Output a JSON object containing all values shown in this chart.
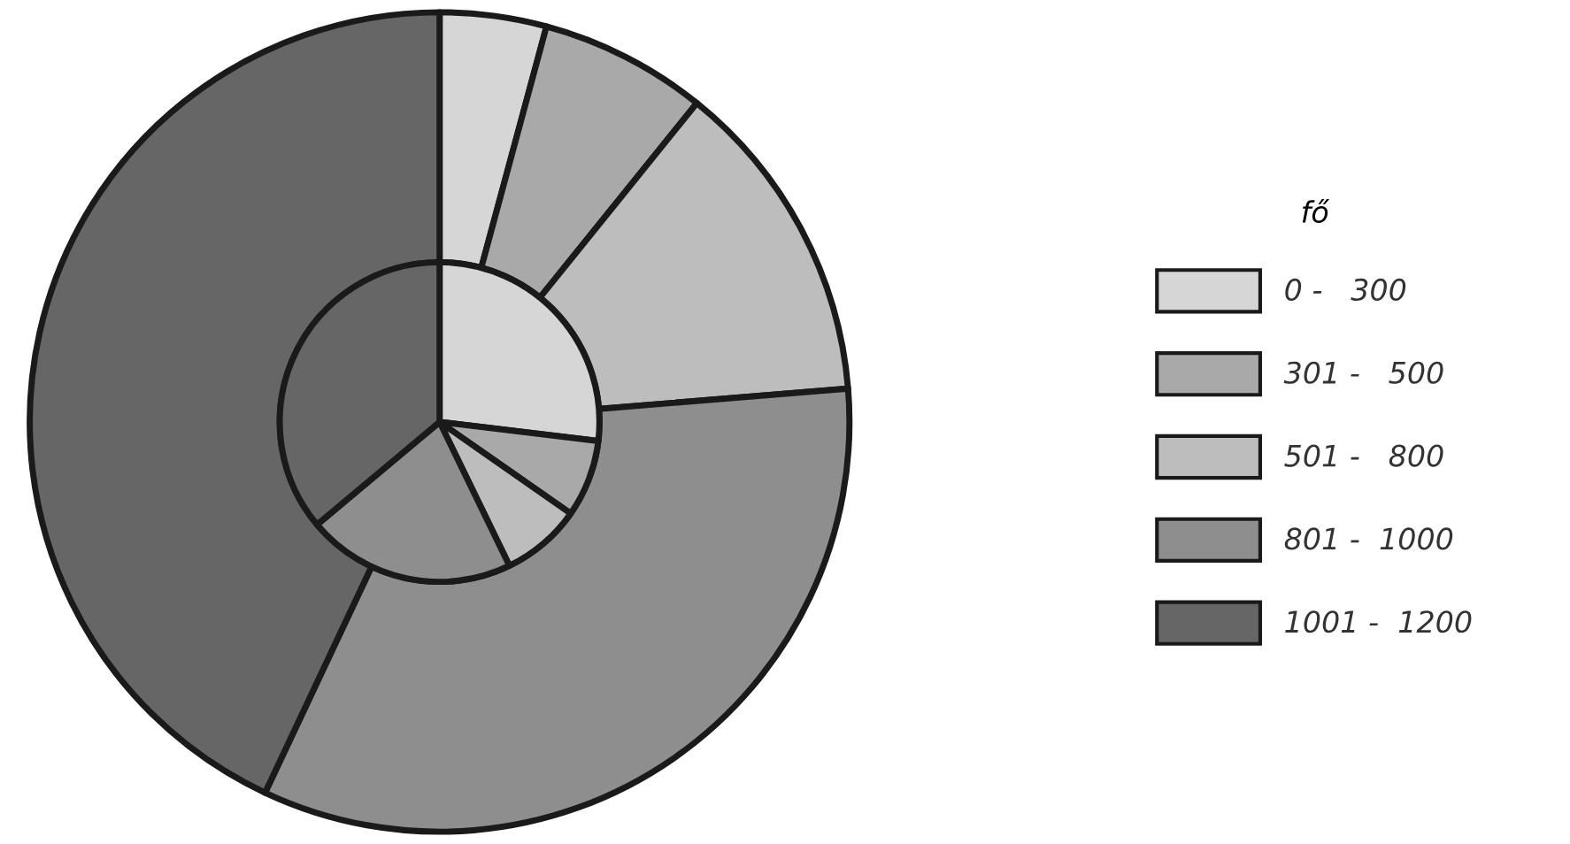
{
  "chart_data": {
    "type": "donut",
    "legend_title": "fő",
    "legend": "right",
    "categories": [
      "0 -   300",
      "301 -   500",
      "501 -   800",
      "801 -  1000",
      "1001 -  1200"
    ],
    "colors": [
      "#d6d6d6",
      "#a9a9a9",
      "#bdbdbd",
      "#8e8e8e",
      "#666666"
    ],
    "series": [
      {
        "values": [
          4.2,
          6.6,
          12.9,
          33.3,
          43.0
        ]
      },
      {
        "values": [
          26.9,
          7.8,
          8.1,
          21.1,
          36.1
        ]
      }
    ]
  }
}
